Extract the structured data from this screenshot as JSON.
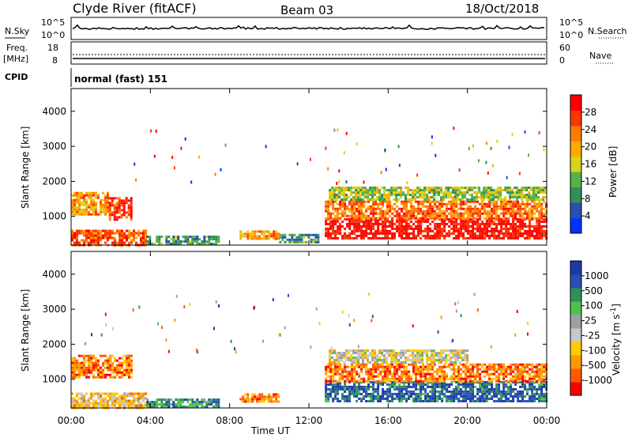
{
  "header": {
    "station": "Clyde River (fitACF)",
    "beam": "Beam 03",
    "date": "18/Oct/2018"
  },
  "noise_panel": {
    "left_label": "N.Sky",
    "right_label": "N.Search",
    "left_ticks": [
      "10^5",
      "10^0"
    ],
    "right_ticks": [
      "10^5",
      "10^0"
    ]
  },
  "freq_panel": {
    "left_label_line1": "Freq.",
    "left_label_line2": "[MHz]",
    "right_label": "Nave",
    "left_ticks": [
      "18",
      "8"
    ],
    "right_ticks": [
      "60",
      "0"
    ]
  },
  "cpid": {
    "label": "CPID",
    "mode": "normal (fast) 151"
  },
  "colors": {
    "power_scale": [
      "#0033ff",
      "#2a4fb3",
      "#2f8f5a",
      "#56b04a",
      "#d4d41a",
      "#ffaa00",
      "#ff7a00",
      "#ff3300",
      "#ff0000"
    ],
    "velocity_scale": [
      "#ff0000",
      "#ff5a00",
      "#ff9a00",
      "#ffcc00",
      "#c8c8c8",
      "#a0a0a0",
      "#4ec24e",
      "#2f8f5a",
      "#2a4fb3",
      "#1a3aa8"
    ],
    "ground_scatter": "#b4b4b4"
  },
  "chart_data": [
    {
      "type": "heatmap",
      "name": "power",
      "ylabel": "Slant Range [km]",
      "x_ticks": [
        "00:00",
        "04:00",
        "08:00",
        "12:00",
        "16:00",
        "20:00",
        "00:00"
      ],
      "y_ticks": [
        1000,
        2000,
        3000,
        4000
      ],
      "ylim": [
        180,
        4650
      ],
      "xlim": [
        0,
        24
      ],
      "colorbar": {
        "label": "Power [dB]",
        "ticks": [
          4,
          8,
          12,
          16,
          20,
          24,
          28
        ],
        "range": [
          0,
          32
        ]
      },
      "echo_regions": [
        {
          "t0": 0.0,
          "t1": 1.9,
          "r0": 1050,
          "r1": 1700,
          "level": 0.65
        },
        {
          "t0": 1.9,
          "t1": 3.0,
          "r0": 900,
          "r1": 1550,
          "level": 0.85
        },
        {
          "t0": 0.0,
          "t1": 3.8,
          "r0": 200,
          "r1": 620,
          "level": 0.8
        },
        {
          "t0": 3.8,
          "t1": 7.5,
          "r0": 200,
          "r1": 450,
          "level": 0.3
        },
        {
          "t0": 8.5,
          "t1": 10.5,
          "r0": 380,
          "r1": 600,
          "level": 0.65
        },
        {
          "t0": 10.5,
          "t1": 12.5,
          "r0": 250,
          "r1": 500,
          "level": 0.3
        },
        {
          "t0": 12.8,
          "t1": 24.0,
          "r0": 350,
          "r1": 950,
          "level": 0.95
        },
        {
          "t0": 12.8,
          "t1": 24.0,
          "r0": 950,
          "r1": 1450,
          "level": 0.75
        },
        {
          "t0": 13.0,
          "t1": 24.0,
          "r0": 1450,
          "r1": 1850,
          "level": 0.45
        }
      ]
    },
    {
      "type": "heatmap",
      "name": "velocity",
      "ylabel": "Slant Range [km]",
      "xlabel": "Time UT",
      "x_ticks": [
        "00:00",
        "04:00",
        "08:00",
        "12:00",
        "16:00",
        "20:00",
        "00:00"
      ],
      "y_ticks": [
        1000,
        2000,
        3000,
        4000
      ],
      "ylim": [
        180,
        4650
      ],
      "xlim": [
        0,
        24
      ],
      "colorbar": {
        "label": "Velocity [m s^-1]",
        "ticks": [
          1000,
          500,
          100,
          25,
          -25,
          -100,
          -500,
          -1000
        ]
      },
      "echo_regions": [
        {
          "t0": 0.0,
          "t1": 3.0,
          "r0": 1050,
          "r1": 1700,
          "level": 0.2
        },
        {
          "t0": 0.0,
          "t1": 3.8,
          "r0": 200,
          "r1": 620,
          "level": 0.35
        },
        {
          "t0": 3.8,
          "t1": 7.5,
          "r0": 200,
          "r1": 450,
          "level": 0.75
        },
        {
          "t0": 8.5,
          "t1": 10.5,
          "r0": 380,
          "r1": 600,
          "level": 0.2
        },
        {
          "t0": 12.8,
          "t1": 24.0,
          "r0": 350,
          "r1": 950,
          "level": 0.85
        },
        {
          "t0": 12.8,
          "t1": 24.0,
          "r0": 950,
          "r1": 1450,
          "level": 0.2
        },
        {
          "t0": 13.0,
          "t1": 20.0,
          "r0": 1450,
          "r1": 1850,
          "level": 0.45
        }
      ]
    }
  ]
}
